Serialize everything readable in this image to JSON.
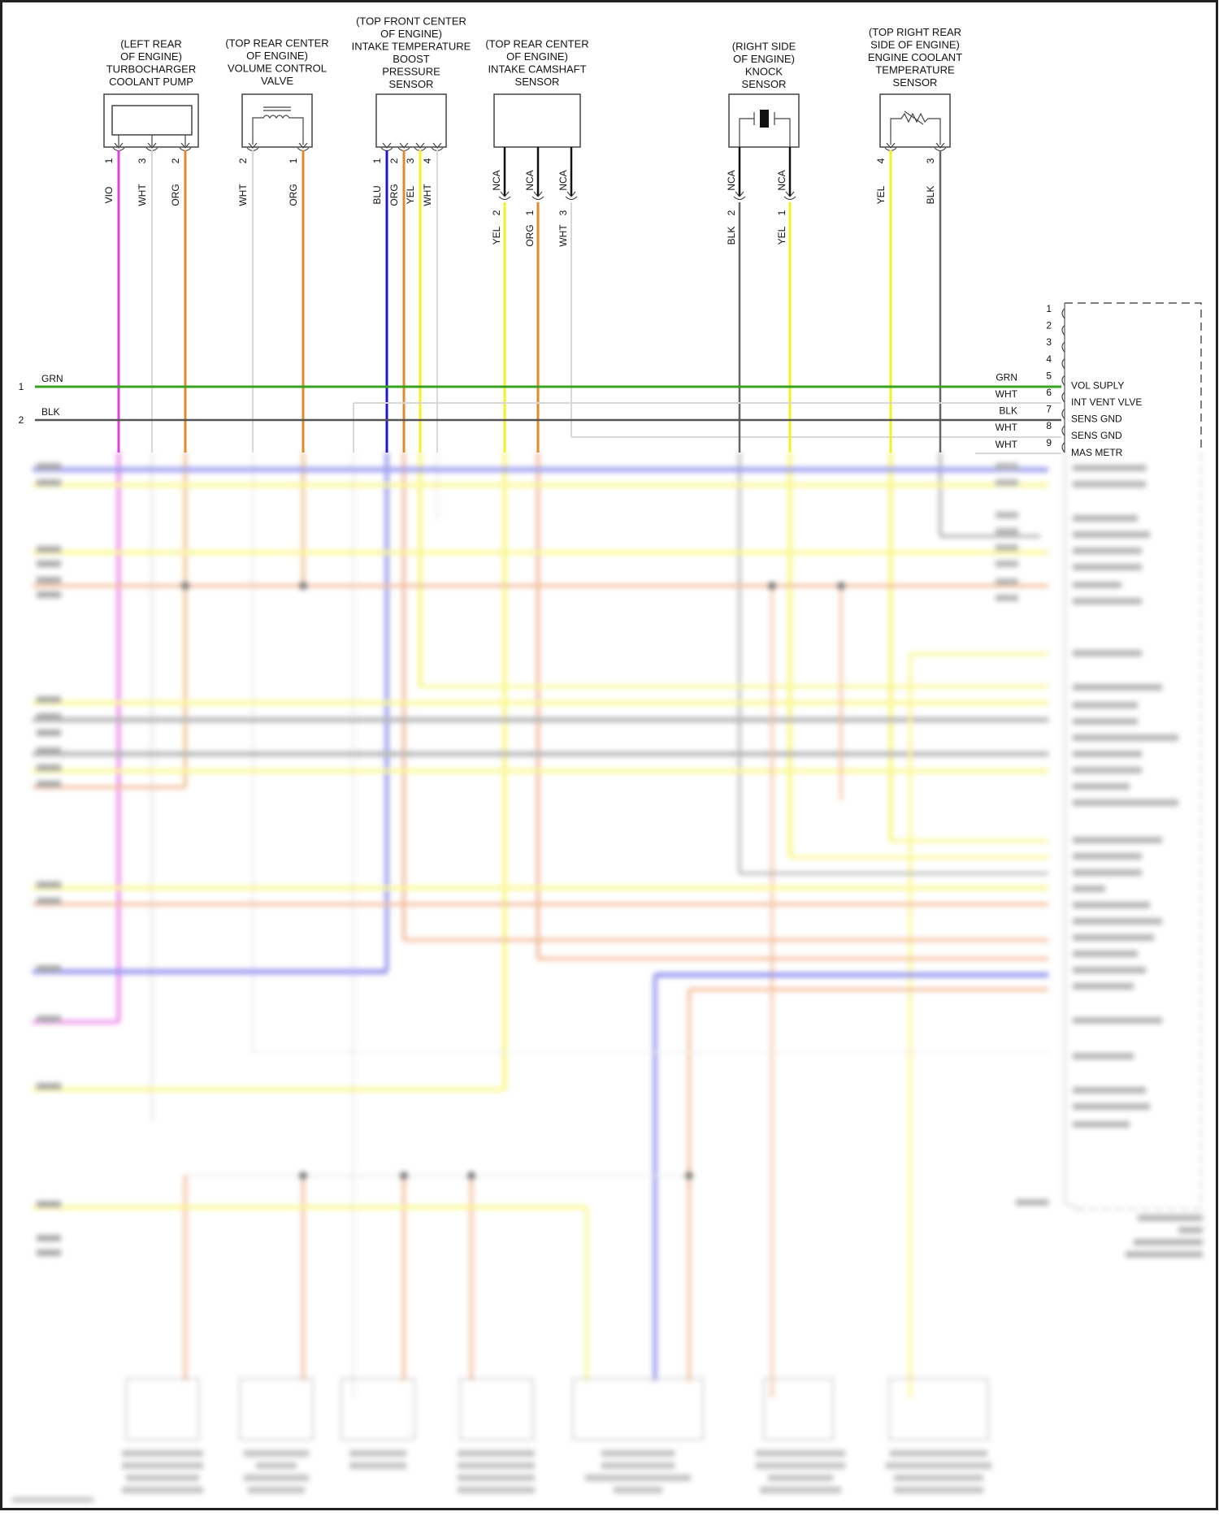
{
  "components": [
    {
      "id": "turbo_pump",
      "lines": [
        "(LEFT REAR",
        "OF ENGINE)",
        "TURBOCHARGER",
        "COOLANT PUMP"
      ],
      "pins": [
        {
          "num": "1",
          "color": "VIO"
        },
        {
          "num": "3",
          "color": "WHT"
        },
        {
          "num": "2",
          "color": "ORG"
        }
      ]
    },
    {
      "id": "volume_valve",
      "lines": [
        "(TOP REAR CENTER",
        "OF ENGINE)",
        "VOLUME CONTROL",
        "VALVE"
      ],
      "pins": [
        {
          "num": "2",
          "color": "WHT"
        },
        {
          "num": "1",
          "color": "ORG"
        }
      ]
    },
    {
      "id": "intake_temp_boost",
      "lines": [
        "(TOP FRONT CENTER",
        "OF ENGINE)",
        "INTAKE TEMPERATURE",
        "BOOST",
        "PRESSURE",
        "SENSOR"
      ],
      "pins": [
        {
          "num": "1",
          "color": "BLU"
        },
        {
          "num": "2",
          "color": "ORG"
        },
        {
          "num": "3",
          "color": "YEL"
        },
        {
          "num": "4",
          "color": "WHT"
        }
      ]
    },
    {
      "id": "intake_cam",
      "lines": [
        "(TOP REAR CENTER",
        "OF ENGINE)",
        "INTAKE CAMSHAFT",
        "SENSOR"
      ],
      "pins": [
        {
          "num": "2",
          "color": "YEL",
          "lead": "NCA"
        },
        {
          "num": "1",
          "color": "ORG",
          "lead": "NCA"
        },
        {
          "num": "3",
          "color": "WHT",
          "lead": "NCA"
        }
      ]
    },
    {
      "id": "knock",
      "lines": [
        "(RIGHT SIDE",
        "OF ENGINE)",
        "KNOCK",
        "SENSOR"
      ],
      "pins": [
        {
          "num": "2",
          "color": "BLK",
          "lead": "NCA"
        },
        {
          "num": "1",
          "color": "YEL",
          "lead": "NCA"
        }
      ]
    },
    {
      "id": "ect",
      "lines": [
        "(TOP RIGHT REAR",
        "SIDE OF ENGINE)",
        "ENGINE COOLANT",
        "TEMPERATURE",
        "SENSOR"
      ],
      "pins": [
        {
          "num": "4",
          "color": "YEL"
        },
        {
          "num": "3",
          "color": "BLK"
        }
      ]
    }
  ],
  "left_circuits": [
    {
      "num": "1",
      "color": "GRN"
    },
    {
      "num": "2",
      "color": "BLK"
    }
  ],
  "module_pins": [
    {
      "num": "1",
      "wire": "",
      "name": ""
    },
    {
      "num": "2",
      "wire": "",
      "name": ""
    },
    {
      "num": "3",
      "wire": "",
      "name": ""
    },
    {
      "num": "4",
      "wire": "",
      "name": ""
    },
    {
      "num": "5",
      "wire": "GRN",
      "name": "VOL SUPLY"
    },
    {
      "num": "6",
      "wire": "WHT",
      "name": "INT VENT VLVE"
    },
    {
      "num": "7",
      "wire": "BLK",
      "name": "SENS GND"
    },
    {
      "num": "8",
      "wire": "WHT",
      "name": "SENS GND"
    },
    {
      "num": "9",
      "wire": "WHT",
      "name": "MAS METR"
    }
  ],
  "colors": {
    "VIO": "#e03ce0",
    "WHT": "#d8d8d8",
    "ORG": "#e08a2a",
    "BLU": "#1a1acc",
    "YEL": "#f5f020",
    "GRN": "#3aa020",
    "BLK": "#555555",
    "NCA": "#111111"
  }
}
